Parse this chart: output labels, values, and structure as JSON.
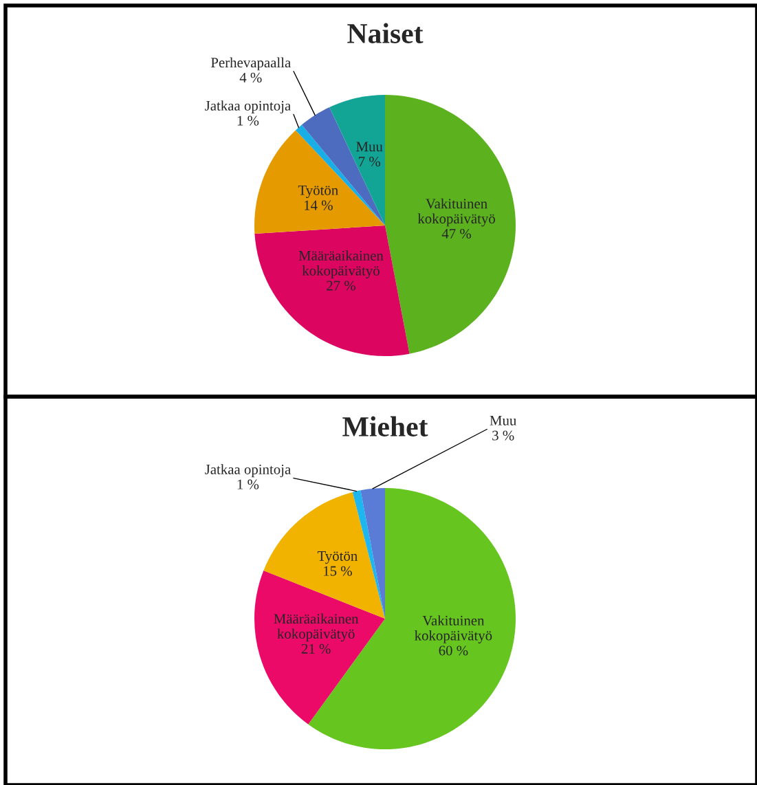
{
  "chart_data": [
    {
      "type": "pie",
      "title": "Naiset",
      "categories": [
        "Vakituinen kokopäivätyö",
        "Määräaikainen kokopäivätyö",
        "Työtön",
        "Jatkaa opintoja",
        "Perhevapaalla",
        "Muu"
      ],
      "values": [
        47,
        27,
        14,
        1,
        4,
        7
      ],
      "value_labels": [
        "47 %",
        "27 %",
        "14 %",
        "1 %",
        "4 %",
        "7 %"
      ],
      "colors": [
        "#5cb21e",
        "#dc0660",
        "#e59a00",
        "#1aaee6",
        "#4e6cbf",
        "#12a596"
      ]
    },
    {
      "type": "pie",
      "title": "Miehet",
      "categories": [
        "Vakituinen kokopäivätyö",
        "Määräaikainen kokopäivätyö",
        "Työtön",
        "Jatkaa opintoja",
        "Muu"
      ],
      "values": [
        60,
        21,
        15,
        1,
        3
      ],
      "value_labels": [
        "60 %",
        "21 %",
        "15 %",
        "1 %",
        "3 %"
      ],
      "colors": [
        "#66c51e",
        "#ec0a68",
        "#f2b200",
        "#1eb6ee",
        "#5a7cd6"
      ]
    }
  ]
}
